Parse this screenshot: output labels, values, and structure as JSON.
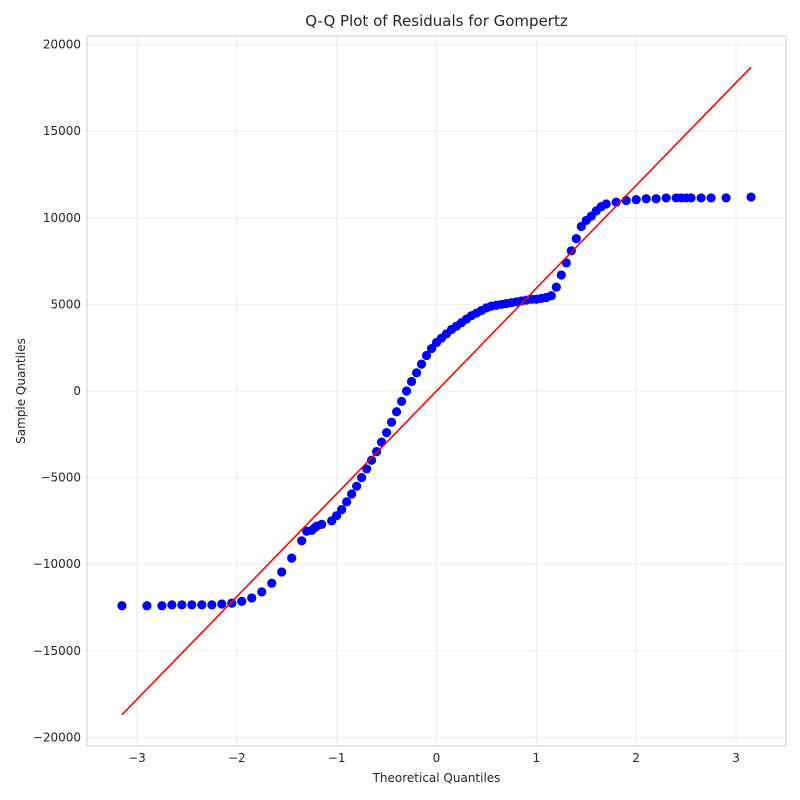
{
  "chart_data": {
    "type": "scatter",
    "title": "Q-Q Plot of Residuals for Gompertz",
    "xlabel": "Theoretical Quantiles",
    "ylabel": "Sample Quantiles",
    "xlim": [
      -3.5,
      3.5
    ],
    "ylim": [
      -20500,
      20500
    ],
    "x_ticks": [
      -3,
      -2,
      -1,
      0,
      1,
      2,
      3
    ],
    "x_tick_labels": [
      "−3",
      "−2",
      "−1",
      "0",
      "1",
      "2",
      "3"
    ],
    "y_ticks": [
      -20000,
      -15000,
      -10000,
      -5000,
      0,
      5000,
      10000,
      15000,
      20000
    ],
    "y_tick_labels": [
      "−20000",
      "−15000",
      "−10000",
      "−5000",
      "0",
      "5000",
      "10000",
      "15000",
      "20000"
    ],
    "grid": true,
    "series": [
      {
        "kind": "points",
        "color": "#0000ff",
        "x": [
          -3.15,
          -2.9,
          -2.75,
          -2.65,
          -2.55,
          -2.45,
          -2.35,
          -2.25,
          -2.15,
          -2.05,
          -1.95,
          -1.85,
          -1.75,
          -1.65,
          -1.55,
          -1.45,
          -1.35,
          -1.3,
          -1.25,
          -1.22,
          -1.2,
          -1.15,
          -1.05,
          -1.0,
          -0.95,
          -0.9,
          -0.85,
          -0.8,
          -0.75,
          -0.7,
          -0.65,
          -0.6,
          -0.55,
          -0.5,
          -0.45,
          -0.4,
          -0.35,
          -0.3,
          -0.25,
          -0.2,
          -0.15,
          -0.1,
          -0.05,
          0.0,
          0.05,
          0.1,
          0.15,
          0.2,
          0.25,
          0.3,
          0.35,
          0.4,
          0.45,
          0.5,
          0.55,
          0.6,
          0.65,
          0.7,
          0.75,
          0.8,
          0.85,
          0.9,
          0.95,
          1.0,
          1.05,
          1.1,
          1.15,
          1.2,
          1.25,
          1.3,
          1.35,
          1.4,
          1.45,
          1.5,
          1.55,
          1.6,
          1.65,
          1.7,
          1.8,
          1.9,
          2.0,
          2.1,
          2.2,
          2.3,
          2.4,
          2.45,
          2.5,
          2.55,
          2.65,
          2.75,
          2.9,
          3.15
        ],
        "y": [
          -12400,
          -12400,
          -12400,
          -12350,
          -12350,
          -12350,
          -12350,
          -12350,
          -12300,
          -12250,
          -12150,
          -11950,
          -11600,
          -11100,
          -10450,
          -9650,
          -8650,
          -8100,
          -8050,
          -7900,
          -7800,
          -7700,
          -7500,
          -7200,
          -6850,
          -6400,
          -5950,
          -5500,
          -5000,
          -4500,
          -4000,
          -3500,
          -2950,
          -2400,
          -1800,
          -1200,
          -600,
          0,
          550,
          1050,
          1550,
          2050,
          2450,
          2800,
          3050,
          3300,
          3550,
          3750,
          3950,
          4150,
          4350,
          4500,
          4650,
          4800,
          4900,
          4950,
          5000,
          5050,
          5100,
          5150,
          5200,
          5250,
          5300,
          5300,
          5350,
          5400,
          5500,
          6000,
          6700,
          7400,
          8100,
          8800,
          9500,
          9850,
          10100,
          10400,
          10650,
          10800,
          10900,
          11000,
          11050,
          11100,
          11100,
          11150,
          11150,
          11150,
          11150,
          11150,
          11150,
          11150,
          11150,
          11200
        ]
      },
      {
        "kind": "line",
        "color": "#ff0000",
        "x": [
          -3.15,
          3.15
        ],
        "y": [
          -18700,
          18700
        ]
      }
    ]
  }
}
